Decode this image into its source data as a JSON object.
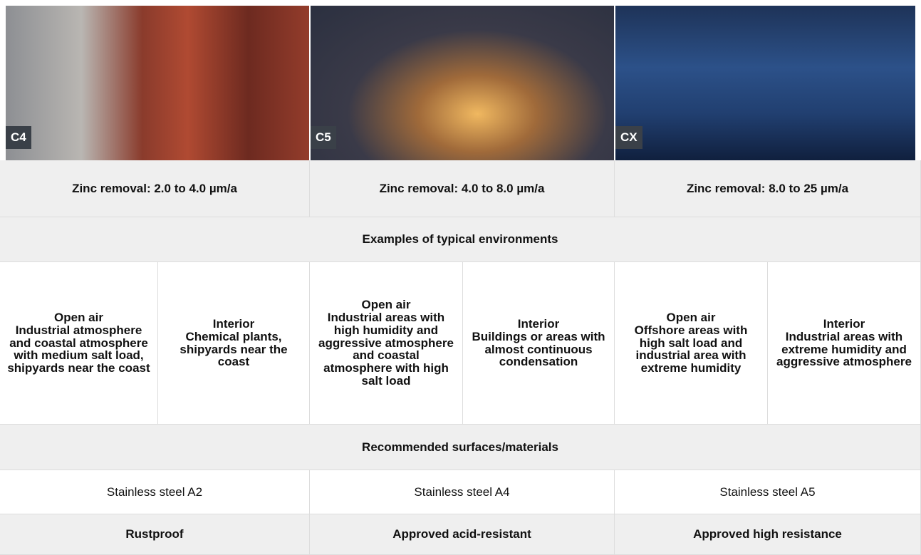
{
  "sections": {
    "environments": "Examples of typical environments",
    "materials": "Recommended surfaces/materials"
  },
  "columns": [
    {
      "label": "C4",
      "zinc_removal": "Zinc removal: 2.0 to 4.0 µm/a",
      "environments": [
        {
          "heading": "Open air",
          "text": "Industrial atmosphere and coastal atmosphere with medium salt load, shipyards near the coast"
        },
        {
          "heading": "Interior",
          "text": "Chemical plants, shipyards near the coast"
        }
      ],
      "material": "Stainless steel A2",
      "property": "Rustproof"
    },
    {
      "label": "C5",
      "zinc_removal": "Zinc removal: 4.0 to 8.0 µm/a",
      "environments": [
        {
          "heading": "Open air",
          "text": "Industrial areas with high humidity and aggressive atmosphere and coastal atmosphere with high salt load"
        },
        {
          "heading": "Interior",
          "text": "Buildings or areas with almost continuous condensation"
        }
      ],
      "material": "Stainless steel A4",
      "property": "Approved acid-resistant"
    },
    {
      "label": "CX",
      "zinc_removal": "Zinc removal: 8.0 to 25 µm/a",
      "environments": [
        {
          "heading": "Open air",
          "text": "Offshore areas with high salt load and industrial area with extreme humidity"
        },
        {
          "heading": "Interior",
          "text": "Industrial areas with extreme humidity and aggressive atmosphere"
        }
      ],
      "material": "Stainless steel A5",
      "property": "Approved high resistance"
    }
  ]
}
